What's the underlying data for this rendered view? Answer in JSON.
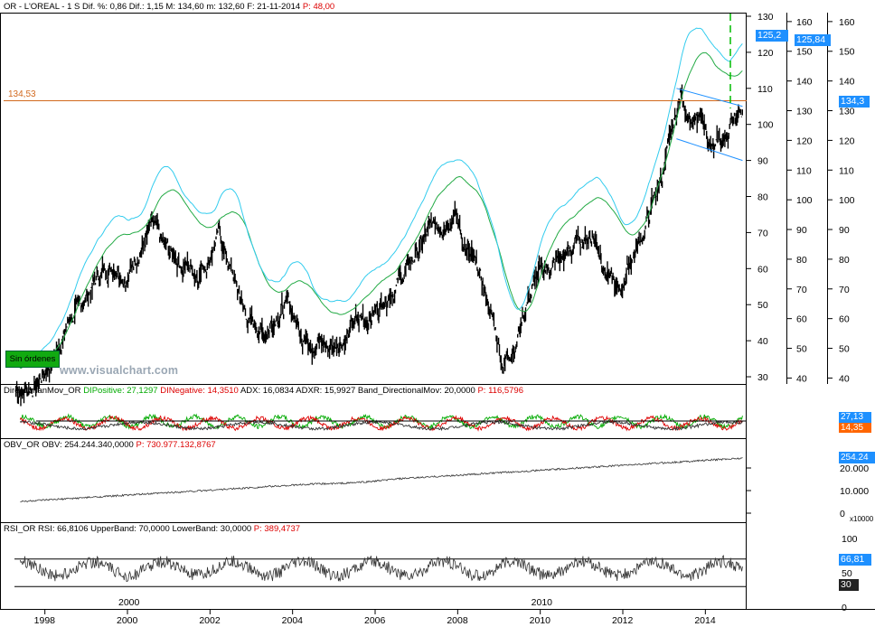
{
  "colors": {
    "price": "#000000",
    "ema_fast": "#33ccee",
    "ema_slow": "#22aa44",
    "resistance": "#d2691e",
    "channel": "#1e90ff",
    "di_positive": "#00aa00",
    "di_negative": "#dd0000",
    "adx": "#333333",
    "adxr": "#666666",
    "rsi": "#333333",
    "rsi_extreme": "#1e6fd9",
    "rsi_low_extreme": "#dd0000",
    "label_box": "#1e90ff",
    "sin_ordenes_bg": "#11aa11",
    "marker": "#00bb00"
  },
  "header": {
    "symbol_info": "OR - L'OREAL - 1 S",
    "pct_label": "Dif. %: 0,86",
    "dif_label": "Dif.: 1,15",
    "max_label": "M: 134,60",
    "min_label": "m: 132,60",
    "date_label": "F: 21-11-2014",
    "p_label": "P: 48,00"
  },
  "main_panel": {
    "resistance_label": "134,53",
    "sin_ordenes": "Sin órdenes",
    "watermark": "www.visualchart.com",
    "label_inner_ema": "125,2",
    "label_outer_ema": "125,84",
    "label_price": "134,3",
    "axis_inner_ticks": [
      "130",
      "120",
      "110",
      "100",
      "90",
      "80",
      "70",
      "60",
      "50",
      "40",
      "30"
    ],
    "axis_outer_ticks": [
      "160",
      "150",
      "140",
      "130",
      "120",
      "110",
      "100",
      "90",
      "80",
      "70",
      "60",
      "50",
      "40"
    ]
  },
  "dmi_panel": {
    "name": "DirectionanMov_OR",
    "di_pos": "DIPositive: 27,1297",
    "di_neg": "DINegative: 14,3510",
    "adx": "ADX: 16,0834",
    "adxr": "ADXR: 15,9927",
    "band": "Band_DirectionalMov: 20,0000",
    "p": "P: 116,5796",
    "label_pos": "27,13",
    "label_neg": "14,35"
  },
  "obv_panel": {
    "name": "OBV_OR",
    "obv": "OBV: 254.244.340,0000",
    "p": "P: 730.977.132,8767",
    "label": "254.24",
    "ticks": [
      "20.000",
      "10.000",
      "0"
    ],
    "unit": "x10000"
  },
  "rsi_panel": {
    "name": "RSI_OR",
    "rsi": "RSI: 66,8106",
    "upper": "UpperBand: 70,0000",
    "lower": "LowerBand: 30,0000",
    "p": "P: 389,4737",
    "label_rsi": "66,81",
    "label_band": "30",
    "ticks": [
      "100",
      "50",
      "0"
    ]
  },
  "time_axis": {
    "years": [
      "1998",
      "2000",
      "2002",
      "2004",
      "2006",
      "2008",
      "2010",
      "2012",
      "2014"
    ],
    "decades": [
      "2000",
      "2010"
    ]
  },
  "chart_data": {
    "type": "line",
    "x_unit": "year",
    "series": [
      {
        "name": "L'OREAL",
        "points": [
          [
            1997.3,
            26
          ],
          [
            1997.8,
            28
          ],
          [
            1998.2,
            35
          ],
          [
            1998.6,
            46
          ],
          [
            1998.9,
            50
          ],
          [
            1999.3,
            58
          ],
          [
            1999.7,
            62
          ],
          [
            2000.0,
            58
          ],
          [
            2000.3,
            66
          ],
          [
            2000.6,
            71
          ],
          [
            2000.9,
            65
          ],
          [
            2001.3,
            62
          ],
          [
            2001.7,
            59
          ],
          [
            2002.0,
            64
          ],
          [
            2002.2,
            70
          ],
          [
            2002.6,
            56
          ],
          [
            2002.9,
            46
          ],
          [
            2003.3,
            42
          ],
          [
            2003.6,
            48
          ],
          [
            2003.9,
            50
          ],
          [
            2004.2,
            43
          ],
          [
            2004.6,
            40
          ],
          [
            2004.9,
            38
          ],
          [
            2005.3,
            42
          ],
          [
            2005.7,
            46
          ],
          [
            2006.0,
            48
          ],
          [
            2006.3,
            54
          ],
          [
            2006.7,
            58
          ],
          [
            2006.9,
            62
          ],
          [
            2007.3,
            70
          ],
          [
            2007.6,
            73
          ],
          [
            2007.9,
            77
          ],
          [
            2008.2,
            65
          ],
          [
            2008.5,
            58
          ],
          [
            2008.8,
            48
          ],
          [
            2009.1,
            34
          ],
          [
            2009.4,
            40
          ],
          [
            2009.7,
            52
          ],
          [
            2009.9,
            57
          ],
          [
            2010.2,
            60
          ],
          [
            2010.6,
            63
          ],
          [
            2010.9,
            67
          ],
          [
            2011.3,
            70
          ],
          [
            2011.6,
            60
          ],
          [
            2011.9,
            52
          ],
          [
            2012.2,
            63
          ],
          [
            2012.5,
            70
          ],
          [
            2012.8,
            80
          ],
          [
            2013.1,
            92
          ],
          [
            2013.4,
            108
          ],
          [
            2013.7,
            101
          ],
          [
            2014.0,
            99
          ],
          [
            2014.2,
            92
          ],
          [
            2014.5,
            96
          ],
          [
            2014.7,
            103
          ],
          [
            2014.9,
            106
          ]
        ]
      }
    ],
    "resistance_level": 134.53,
    "current_price": 134.3,
    "ema_fast_last": 125.2,
    "ema_slow_last": 125.84,
    "rsi_upper": 70,
    "rsi_lower": 30,
    "rsi_last": 66.81,
    "obv_last": 254244340,
    "di_positive_last": 27.13,
    "di_negative_last": 14.35,
    "x_range": [
      1997.0,
      2015.0
    ],
    "inner_axis_range": [
      28,
      131
    ],
    "outer_axis_range": [
      38,
      163
    ],
    "grid": false
  }
}
